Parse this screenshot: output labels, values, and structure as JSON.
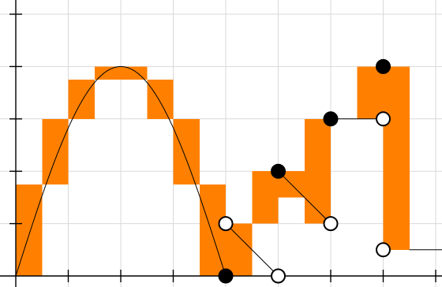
{
  "chart_data": {
    "type": "bar",
    "title": "",
    "xlabel": "",
    "ylabel": "",
    "xlim": [
      0,
      8.2
    ],
    "ylim": [
      0,
      5
    ],
    "grid": true,
    "step_bars": [
      {
        "x0": 0,
        "x1": 0.5,
        "y0": 0,
        "y1": 1.75
      },
      {
        "x0": 0.5,
        "x1": 1,
        "y0": 1.75,
        "y1": 3
      },
      {
        "x0": 1,
        "x1": 1.5,
        "y0": 3,
        "y1": 3.75
      },
      {
        "x0": 1.5,
        "x1": 2.5,
        "y0": 3.75,
        "y1": 4
      },
      {
        "x0": 2.5,
        "x1": 3,
        "y0": 3,
        "y1": 3.75
      },
      {
        "x0": 3,
        "x1": 3.5,
        "y0": 1.75,
        "y1": 3
      },
      {
        "x0": 3.5,
        "x1": 4,
        "y0": 0,
        "y1": 1.75
      },
      {
        "x0": 4,
        "x1": 4.5,
        "y0": 0,
        "y1": 1
      },
      {
        "x0": 4.5,
        "x1": 5,
        "y0": 1,
        "y1": 2
      },
      {
        "x0": 5,
        "x1": 5.5,
        "y0": 1.5,
        "y1": 2
      },
      {
        "x0": 5.5,
        "x1": 6,
        "y0": 1,
        "y1": 3
      },
      {
        "x0": 6.5,
        "x1": 7,
        "y0": 3,
        "y1": 4
      },
      {
        "x0": 7,
        "x1": 7.5,
        "y0": 0.5,
        "y1": 4
      }
    ],
    "curve": {
      "function": "4*sin(pi*x/4)",
      "x_range": [
        0,
        4
      ]
    },
    "segments": [
      {
        "x0": 4,
        "y0": 1,
        "x1": 5,
        "y1": 0
      },
      {
        "x0": 5,
        "y0": 2,
        "x1": 6,
        "y1": 1
      },
      {
        "x0": 6,
        "y0": 3,
        "x1": 7,
        "y1": 3
      },
      {
        "x0": 7.5,
        "y0": 0.5,
        "x1": 8.2,
        "y1": 0.5
      }
    ],
    "filled_points": [
      {
        "x": 4,
        "y": 0
      },
      {
        "x": 5,
        "y": 2
      },
      {
        "x": 6,
        "y": 3
      },
      {
        "x": 7,
        "y": 4
      }
    ],
    "open_points": [
      {
        "x": 4,
        "y": 1
      },
      {
        "x": 5,
        "y": 0
      },
      {
        "x": 6,
        "y": 1
      },
      {
        "x": 7,
        "y": 3
      },
      {
        "x": 7,
        "y": 0.5
      }
    ],
    "colors": {
      "bar": "#ff8000",
      "grid": "#d9d9d9",
      "axis": "#000000",
      "curve": "#000000",
      "open_point_fill": "#ffffff",
      "filled_point_fill": "#000000"
    }
  }
}
